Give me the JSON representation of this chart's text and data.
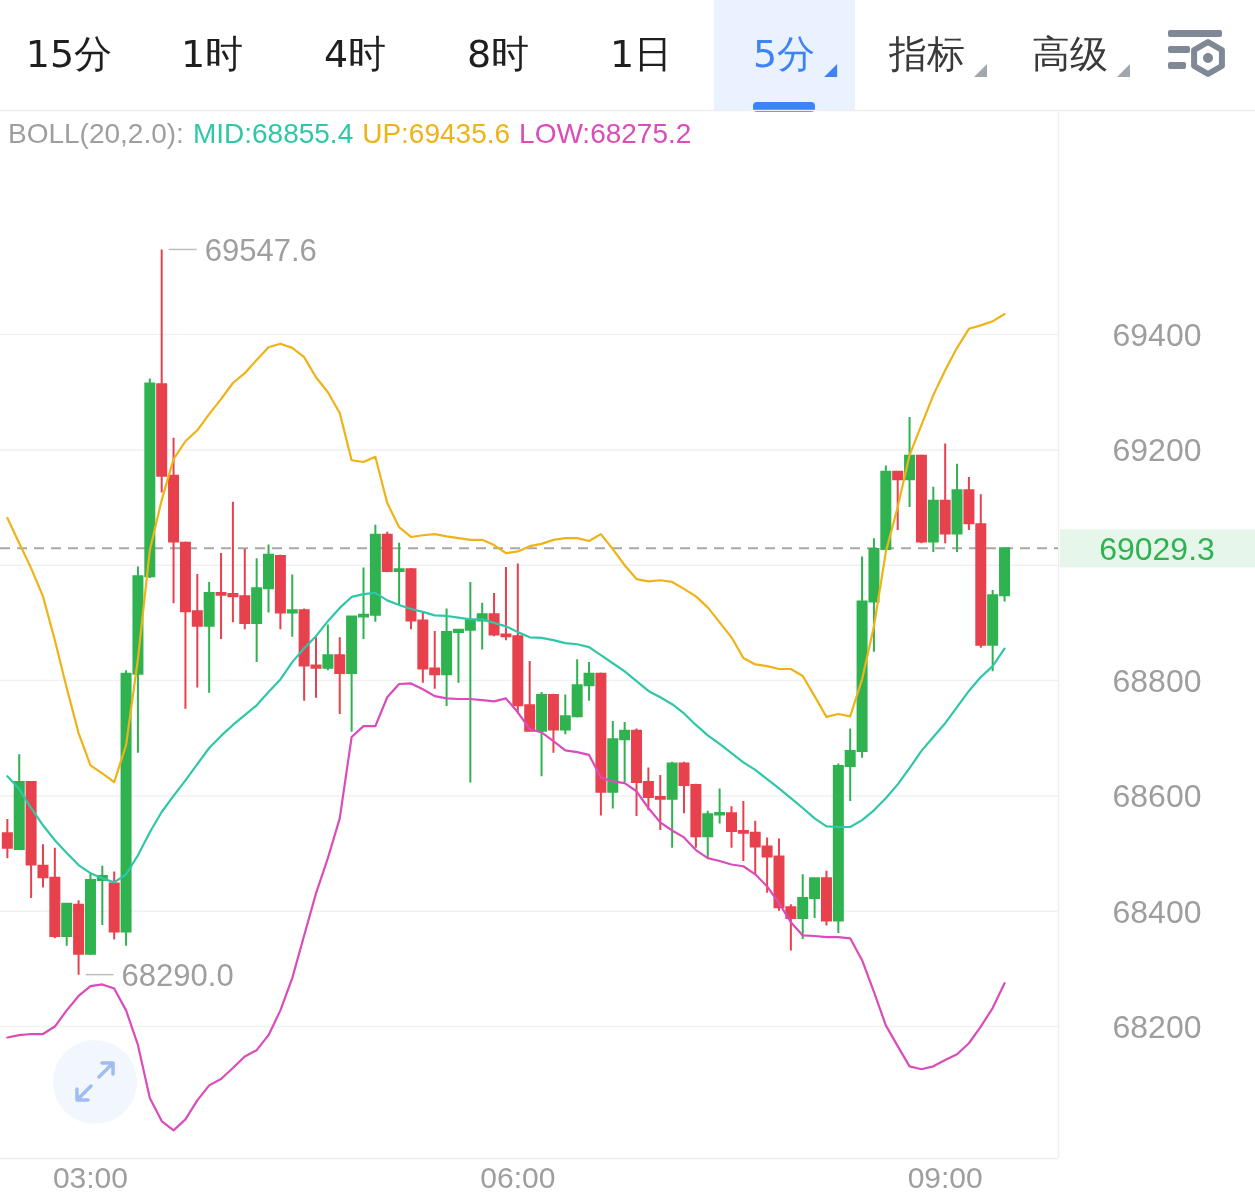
{
  "chart_data": {
    "type": "candlestick",
    "legend_title": "BOLL(20,2.0):",
    "legend": "top left",
    "grid": "y",
    "annotations": [
      {
        "text": "69547.6",
        "x": 3.5,
        "y": 69547.6
      },
      {
        "text": "68290.0",
        "x": 2.9167,
        "y": 68290.0
      },
      "15分",
      "1时",
      "4时",
      "8时",
      "1日",
      "5分",
      "指标",
      "高级"
    ],
    "xlim": [
      2.365,
      9.792
    ],
    "ylim": [
      67972,
      69786
    ],
    "xticks": [
      {
        "value": 3,
        "label": "03:00"
      },
      {
        "value": 6,
        "label": "06:00"
      },
      {
        "value": 9,
        "label": "09:00"
      }
    ],
    "yticks": [
      68200,
      68400,
      68600,
      68800,
      {
        "value": 69000,
        "label": null
      },
      {
        "value": 69029.3,
        "label": "69029.3"
      },
      69200,
      69400
    ],
    "ref_lines": [
      {
        "axis": "y",
        "value": 69029.3,
        "color": "#a8a8a8",
        "line_style": "dashed"
      }
    ],
    "x": [
      2.4167,
      2.5,
      2.5833,
      2.6667,
      2.75,
      2.8333,
      2.9167,
      3,
      3.0833,
      3.1667,
      3.25,
      3.3333,
      3.4167,
      3.5,
      3.5833,
      3.6667,
      3.75,
      3.8333,
      3.9167,
      4,
      4.0833,
      4.1667,
      4.25,
      4.3333,
      4.4167,
      4.5,
      4.5833,
      4.6667,
      4.75,
      4.8333,
      4.9167,
      5,
      5.0833,
      5.1667,
      5.25,
      5.3333,
      5.4167,
      5.5,
      5.5833,
      5.6667,
      5.75,
      5.8333,
      5.9167,
      6,
      6.0833,
      6.1667,
      6.25,
      6.3333,
      6.4167,
      6.5,
      6.5833,
      6.6667,
      6.75,
      6.8333,
      6.9167,
      7,
      7.0833,
      7.1667,
      7.25,
      7.3333,
      7.4167,
      7.5,
      7.5833,
      7.6667,
      7.75,
      7.8333,
      7.9167,
      8,
      8.0833,
      8.1667,
      8.25,
      8.3333,
      8.4167,
      8.5,
      8.5833,
      8.6667,
      8.75,
      8.8333,
      8.9167,
      9,
      9.0833,
      9.1667,
      9.25,
      9.3333,
      9.4167
    ],
    "ohlc": [
      [
        68535,
        68560,
        68492,
        68510
      ],
      [
        68508,
        68672,
        68506,
        68624
      ],
      [
        68624,
        68626,
        68423,
        68481
      ],
      [
        68479,
        68516,
        68441,
        68459
      ],
      [
        68458,
        68510,
        68353,
        68357
      ],
      [
        68357,
        68413,
        68340,
        68413
      ],
      [
        68411,
        68419,
        68290.0,
        68326
      ],
      [
        68326,
        68467,
        68324,
        68454
      ],
      [
        68454,
        68479,
        68376,
        68461
      ],
      [
        68448,
        68469,
        68351,
        68365
      ],
      [
        68365,
        68818,
        68340,
        68812
      ],
      [
        68812,
        68998,
        68675,
        68981
      ],
      [
        68981,
        69324,
        68978,
        69315
      ],
      [
        69314,
        69547.6,
        69126,
        69155
      ],
      [
        69155,
        69221,
        68934,
        69041
      ],
      [
        69039,
        69041,
        68751,
        68920
      ],
      [
        68920,
        68985,
        68788,
        68895
      ],
      [
        68895,
        68971,
        68779,
        68952
      ],
      [
        68952,
        69021,
        68872,
        68949
      ],
      [
        68950,
        69110,
        68901,
        68946
      ],
      [
        68946,
        69028,
        68889,
        68900
      ],
      [
        68900,
        69012,
        68832,
        68960
      ],
      [
        68960,
        69036,
        68918,
        69018
      ],
      [
        69016,
        69018,
        68889,
        68918
      ],
      [
        68918,
        68984,
        68876,
        68922
      ],
      [
        68922,
        68925,
        68765,
        68826
      ],
      [
        68826,
        68875,
        68770,
        68822
      ],
      [
        68822,
        68897,
        68818,
        68844
      ],
      [
        68844,
        68875,
        68742,
        68813
      ],
      [
        68813,
        68913,
        68711,
        68911
      ],
      [
        68911,
        68996,
        68872,
        68914
      ],
      [
        68914,
        69070,
        68902,
        69053
      ],
      [
        69053,
        69058,
        68988,
        68990
      ],
      [
        68990,
        69039,
        68931,
        68993
      ],
      [
        68993,
        68995,
        68889,
        68904
      ],
      [
        68904,
        68919,
        68796,
        68821
      ],
      [
        68821,
        68886,
        68786,
        68811
      ],
      [
        68811,
        68925,
        68756,
        68884
      ],
      [
        68884,
        68890,
        68796,
        68888
      ],
      [
        68888,
        68971,
        68623,
        68904
      ],
      [
        68904,
        68935,
        68854,
        68915
      ],
      [
        68915,
        68952,
        68877,
        68880
      ],
      [
        68880,
        68997,
        68870,
        68877
      ],
      [
        68877,
        69003,
        68743,
        68757
      ],
      [
        68757,
        68834,
        68711,
        68713
      ],
      [
        68713,
        68780,
        68634,
        68775
      ],
      [
        68775,
        68777,
        68675,
        68715
      ],
      [
        68715,
        68776,
        68707,
        68738
      ],
      [
        68738,
        68837,
        68736,
        68792
      ],
      [
        68792,
        68832,
        68765,
        68812
      ],
      [
        68812,
        68814,
        68566,
        68607
      ],
      [
        68607,
        68730,
        68578,
        68698
      ],
      [
        68698,
        68728,
        68624,
        68713
      ],
      [
        68713,
        68717,
        68565,
        68624
      ],
      [
        68624,
        68649,
        68575,
        68598
      ],
      [
        68598,
        68636,
        68541,
        68595
      ],
      [
        68595,
        68659,
        68510,
        68656
      ],
      [
        68656,
        68659,
        68570,
        68619
      ],
      [
        68619,
        68621,
        68510,
        68530
      ],
      [
        68530,
        68574,
        68491,
        68568
      ],
      [
        68568,
        68613,
        68552,
        68570
      ],
      [
        68570,
        68582,
        68510,
        68539
      ],
      [
        68539,
        68591,
        68487,
        68536
      ],
      [
        68536,
        68557,
        68464,
        68512
      ],
      [
        68512,
        68528,
        68432,
        68495
      ],
      [
        68495,
        68526,
        68401,
        68407
      ],
      [
        68407,
        68412,
        68332,
        68388
      ],
      [
        68388,
        68464,
        68352,
        68423
      ],
      [
        68423,
        68459,
        68388,
        68457
      ],
      [
        68457,
        68470,
        68375,
        68384
      ],
      [
        68384,
        68656,
        68362,
        68652
      ],
      [
        68652,
        68717,
        68591,
        68678
      ],
      [
        68678,
        69015,
        68666,
        68937
      ],
      [
        68937,
        69047,
        68850,
        69028
      ],
      [
        69028,
        69173,
        69025,
        69162
      ],
      [
        69162,
        69164,
        69061,
        69149
      ],
      [
        69149,
        69257,
        69101,
        69190
      ],
      [
        69190,
        69192,
        69038,
        69041
      ],
      [
        69041,
        69136,
        69023,
        69112
      ],
      [
        69112,
        69211,
        69038,
        69055
      ],
      [
        69055,
        69176,
        69023,
        69130
      ],
      [
        69130,
        69153,
        69061,
        69073
      ],
      [
        69071,
        69123,
        68857,
        68862
      ],
      [
        68862,
        68957,
        68816,
        68948
      ],
      [
        68948,
        69029.3,
        68937,
        69029.3
      ]
    ],
    "colors": [
      "#e8414e",
      "#2fb350",
      "#e8414e",
      "#e8414e",
      "#e8414e",
      "#2fb350",
      "#e8414e",
      "#2fb350",
      "#2fb350",
      "#e8414e",
      "#2fb350",
      "#2fb350",
      "#2fb350",
      "#e8414e",
      "#e8414e",
      "#e8414e",
      "#e8414e",
      "#2fb350",
      "#e8414e",
      "#e8414e",
      "#e8414e",
      "#2fb350",
      "#2fb350",
      "#e8414e",
      "#2fb350",
      "#e8414e",
      "#e8414e",
      "#2fb350",
      "#e8414e",
      "#2fb350",
      "#2fb350",
      "#2fb350",
      "#e8414e",
      "#2fb350",
      "#e8414e",
      "#e8414e",
      "#e8414e",
      "#2fb350",
      "#2fb350",
      "#2fb350",
      "#2fb350",
      "#e8414e",
      "#e8414e",
      "#e8414e",
      "#e8414e",
      "#2fb350",
      "#e8414e",
      "#2fb350",
      "#2fb350",
      "#2fb350",
      "#e8414e",
      "#2fb350",
      "#2fb350",
      "#e8414e",
      "#e8414e",
      "#e8414e",
      "#2fb350",
      "#e8414e",
      "#e8414e",
      "#2fb350",
      "#2fb350",
      "#e8414e",
      "#e8414e",
      "#e8414e",
      "#e8414e",
      "#e8414e",
      "#e8414e",
      "#2fb350",
      "#2fb350",
      "#e8414e",
      "#2fb350",
      "#2fb350",
      "#2fb350",
      "#2fb350",
      "#2fb350",
      "#e8414e",
      "#2fb350",
      "#e8414e",
      "#2fb350",
      "#e8414e",
      "#2fb350",
      "#e8414e",
      "#e8414e",
      "#2fb350",
      "#2fb350"
    ],
    "series": [
      {
        "name": "MID:68855.4",
        "type": "line",
        "color": "#2fc7a7",
        "values": [
          68634,
          68612,
          68579,
          68549,
          68523,
          68501,
          68480,
          68466,
          68457,
          68450,
          68464,
          68497,
          68537,
          68572,
          68600,
          68627,
          68655,
          68683,
          68704,
          68723,
          68740,
          68757,
          68780,
          68802,
          68832,
          68856,
          68877,
          68903,
          68926,
          68945,
          68950,
          68952,
          68939,
          68931,
          68924,
          68919,
          68913,
          68912,
          68909,
          68906,
          68906,
          68900,
          68894,
          68884,
          68875,
          68874,
          68870,
          68865,
          68863,
          68858,
          68844,
          68830,
          68816,
          68799,
          68782,
          68771,
          68759,
          68743,
          68723,
          68705,
          68690,
          68674,
          68658,
          68645,
          68629,
          68613,
          68596,
          68579,
          68561,
          68547,
          68546,
          68546,
          68558,
          68575,
          68596,
          68620,
          68648,
          68678,
          68702,
          68726,
          68754,
          68782,
          68806,
          68825,
          68855.4
        ]
      },
      {
        "name": "UP:69435.6",
        "type": "line",
        "color": "#efb318",
        "values": [
          69082,
          69038,
          68995,
          68946,
          68870,
          68787,
          68709,
          68653,
          68639,
          68624,
          68688,
          68837,
          69026,
          69113,
          69184,
          69215,
          69234,
          69262,
          69288,
          69316,
          69333,
          69356,
          69378,
          69384,
          69377,
          69361,
          69326,
          69300,
          69264,
          69182,
          69179,
          69188,
          69108,
          69066,
          69049,
          69052,
          69054,
          69050,
          69047,
          69044,
          69044,
          69035,
          69021,
          69024,
          69033,
          69037,
          69044,
          69047,
          69047,
          69042,
          69054,
          69028,
          69000,
          68976,
          68972,
          68974,
          68971,
          68959,
          68946,
          68927,
          68901,
          68875,
          68839,
          68828,
          68825,
          68820,
          68820,
          68808,
          68773,
          68737,
          68742,
          68738,
          68802,
          68894,
          69023,
          69101,
          69191,
          69243,
          69295,
          69338,
          69377,
          69410,
          69416,
          69423,
          69435.6
        ]
      },
      {
        "name": "LOW:68275.2",
        "type": "line",
        "color": "#da4cba",
        "values": [
          68181,
          68185,
          68187,
          68187,
          68200,
          68228,
          68253,
          68270,
          68273,
          68266,
          68228,
          68168,
          68076,
          68036,
          68020,
          68039,
          68072,
          68098,
          68109,
          68128,
          68148,
          68159,
          68185,
          68228,
          68284,
          68358,
          68431,
          68492,
          68561,
          68702,
          68721,
          68721,
          68771,
          68794,
          68795,
          68785,
          68773,
          68769,
          68768,
          68768,
          68766,
          68764,
          68769,
          68745,
          68716,
          68710,
          68695,
          68679,
          68676,
          68671,
          68632,
          68625,
          68622,
          68608,
          68579,
          68554,
          68540,
          68528,
          68506,
          68492,
          68487,
          68481,
          68478,
          68464,
          68443,
          68414,
          68381,
          68358,
          68357,
          68355,
          68355,
          68353,
          68315,
          68260,
          68202,
          68166,
          68131,
          68126,
          68131,
          68142,
          68152,
          68171,
          68200,
          68232,
          68275.2
        ]
      }
    ]
  }
}
